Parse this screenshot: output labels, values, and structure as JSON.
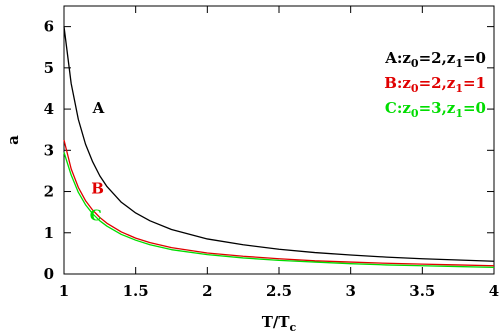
{
  "chart_data": {
    "type": "line",
    "xlabel": "T/T",
    "xlabel_sub": "c",
    "ylabel": "a",
    "xlim": [
      1,
      4
    ],
    "ylim": [
      0,
      6.5
    ],
    "xticks": [
      "1",
      "1.5",
      "2",
      "2.5",
      "3",
      "3.5",
      "4"
    ],
    "yticks": [
      "0",
      "1",
      "2",
      "3",
      "4",
      "5",
      "6"
    ],
    "grid": false,
    "legend_position": "top-right",
    "series": [
      {
        "name": "A",
        "color": "#000000",
        "legend": {
          "pre": "A:z",
          "s1": "0",
          "mid": "=2,z",
          "s2": "1",
          "post": "=0"
        },
        "x": [
          1.0,
          1.05,
          1.1,
          1.15,
          1.2,
          1.25,
          1.3,
          1.4,
          1.5,
          1.6,
          1.75,
          2.0,
          2.25,
          2.5,
          2.75,
          3.0,
          3.25,
          3.5,
          3.75,
          4.0
        ],
        "y": [
          6.0,
          4.62,
          3.75,
          3.15,
          2.72,
          2.38,
          2.12,
          1.74,
          1.48,
          1.29,
          1.08,
          0.85,
          0.71,
          0.6,
          0.52,
          0.46,
          0.41,
          0.37,
          0.34,
          0.31
        ]
      },
      {
        "name": "B",
        "color": "#e00000",
        "legend": {
          "pre": "B:z",
          "s1": "0",
          "mid": "=2,z",
          "s2": "1",
          "post": "=1"
        },
        "x": [
          1.0,
          1.05,
          1.1,
          1.15,
          1.2,
          1.25,
          1.3,
          1.4,
          1.5,
          1.6,
          1.75,
          2.0,
          2.25,
          2.5,
          2.75,
          3.0,
          3.25,
          3.5,
          3.75,
          4.0
        ],
        "y": [
          3.25,
          2.55,
          2.1,
          1.78,
          1.55,
          1.37,
          1.23,
          1.02,
          0.87,
          0.76,
          0.64,
          0.51,
          0.43,
          0.37,
          0.32,
          0.29,
          0.26,
          0.24,
          0.22,
          0.2
        ]
      },
      {
        "name": "C",
        "color": "#00dd00",
        "legend": {
          "pre": "C:z",
          "s1": "0",
          "mid": "=3,z",
          "s2": "1",
          "post": "=0"
        },
        "x": [
          1.0,
          1.05,
          1.1,
          1.15,
          1.2,
          1.25,
          1.3,
          1.4,
          1.5,
          1.6,
          1.75,
          2.0,
          2.25,
          2.5,
          2.75,
          3.0,
          3.25,
          3.5,
          3.75,
          4.0
        ],
        "y": [
          2.95,
          2.4,
          1.98,
          1.68,
          1.46,
          1.29,
          1.16,
          0.96,
          0.82,
          0.71,
          0.59,
          0.47,
          0.39,
          0.33,
          0.29,
          0.25,
          0.22,
          0.2,
          0.18,
          0.16
        ]
      }
    ],
    "annotations": [
      {
        "text": "A",
        "color": "#000000",
        "x": 1.2,
        "y": 3.9
      },
      {
        "text": "B",
        "color": "#e00000",
        "x": 1.19,
        "y": 1.95
      },
      {
        "text": "C",
        "color": "#00dd00",
        "x": 1.18,
        "y": 1.3
      }
    ]
  }
}
